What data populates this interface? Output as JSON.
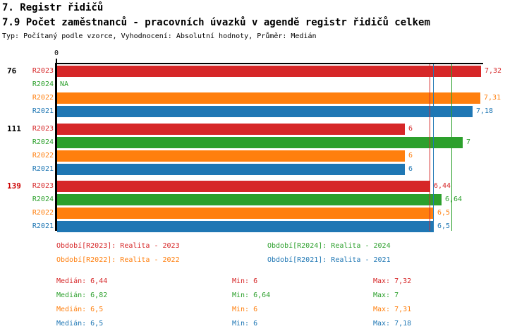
{
  "header": {
    "title": "7. Registr řidičů",
    "subtitle": "7.9 Počet zaměstnanců - pracovních úvazků v agendě registr řidičů celkem",
    "meta": "Typ: Počítaný podle vzorce, Vyhodnocení: Absolutní hodnoty, Průměr: Medián"
  },
  "colors": {
    "R2023": "#d62728",
    "R2024": "#2ca02c",
    "R2022": "#ff7f0e",
    "R2021": "#1f77b4",
    "axis": "#000000",
    "group_label_default": "#000000",
    "group_label_highlight": "#cc0000"
  },
  "chart_data": {
    "type": "bar",
    "orientation": "horizontal",
    "origin_label": "0",
    "xlim": [
      0,
      7.36
    ],
    "grid": false,
    "legend_position": "below",
    "series_order": [
      "R2023",
      "R2024",
      "R2022",
      "R2021"
    ],
    "groups": [
      {
        "label": "76",
        "label_color": "#000000",
        "bars": [
          {
            "series": "R2023",
            "value": 7.32,
            "display": "7,32"
          },
          {
            "series": "R2024",
            "value": null,
            "display": "NA"
          },
          {
            "series": "R2022",
            "value": 7.31,
            "display": "7,31"
          },
          {
            "series": "R2021",
            "value": 7.18,
            "display": "7,18"
          }
        ]
      },
      {
        "label": "111",
        "label_color": "#000000",
        "bars": [
          {
            "series": "R2023",
            "value": 6,
            "display": "6"
          },
          {
            "series": "R2024",
            "value": 7,
            "display": "7"
          },
          {
            "series": "R2022",
            "value": 6,
            "display": "6"
          },
          {
            "series": "R2021",
            "value": 6,
            "display": "6"
          }
        ]
      },
      {
        "label": "139",
        "label_color": "#cc0000",
        "bars": [
          {
            "series": "R2023",
            "value": 6.44,
            "display": "6,44"
          },
          {
            "series": "R2024",
            "value": 6.64,
            "display": "6,64"
          },
          {
            "series": "R2022",
            "value": 6.5,
            "display": "6,5"
          },
          {
            "series": "R2021",
            "value": 6.5,
            "display": "6,5"
          }
        ]
      }
    ],
    "median_lines": [
      {
        "series": "R2022",
        "value": 6.5
      },
      {
        "series": "R2021",
        "value": 6.5
      },
      {
        "series": "R2023",
        "value": 6.44
      },
      {
        "series": "R2024",
        "value": 6.82
      }
    ]
  },
  "legend": [
    {
      "series": "R2023",
      "color": "#d62728",
      "text": "Období[R2023]: Realita - 2023"
    },
    {
      "series": "R2024",
      "color": "#2ca02c",
      "text": "Období[R2024]: Realita - 2024"
    },
    {
      "series": "R2022",
      "color": "#ff7f0e",
      "text": "Období[R2022]: Realita - 2022"
    },
    {
      "series": "R2021",
      "color": "#1f77b4",
      "text": "Období[R2021]: Realita - 2021"
    }
  ],
  "stats": [
    {
      "series": "R2023",
      "color": "#d62728",
      "median": "Medián: 6,44",
      "min": "Min: 6",
      "max": "Max: 7,32"
    },
    {
      "series": "R2024",
      "color": "#2ca02c",
      "median": "Medián: 6,82",
      "min": "Min: 6,64",
      "max": "Max: 7"
    },
    {
      "series": "R2022",
      "color": "#ff7f0e",
      "median": "Medián: 6,5",
      "min": "Min: 6",
      "max": "Max: 7,31"
    },
    {
      "series": "R2021",
      "color": "#1f77b4",
      "median": "Medián: 6,5",
      "min": "Min: 6",
      "max": "Max: 7,18"
    }
  ]
}
